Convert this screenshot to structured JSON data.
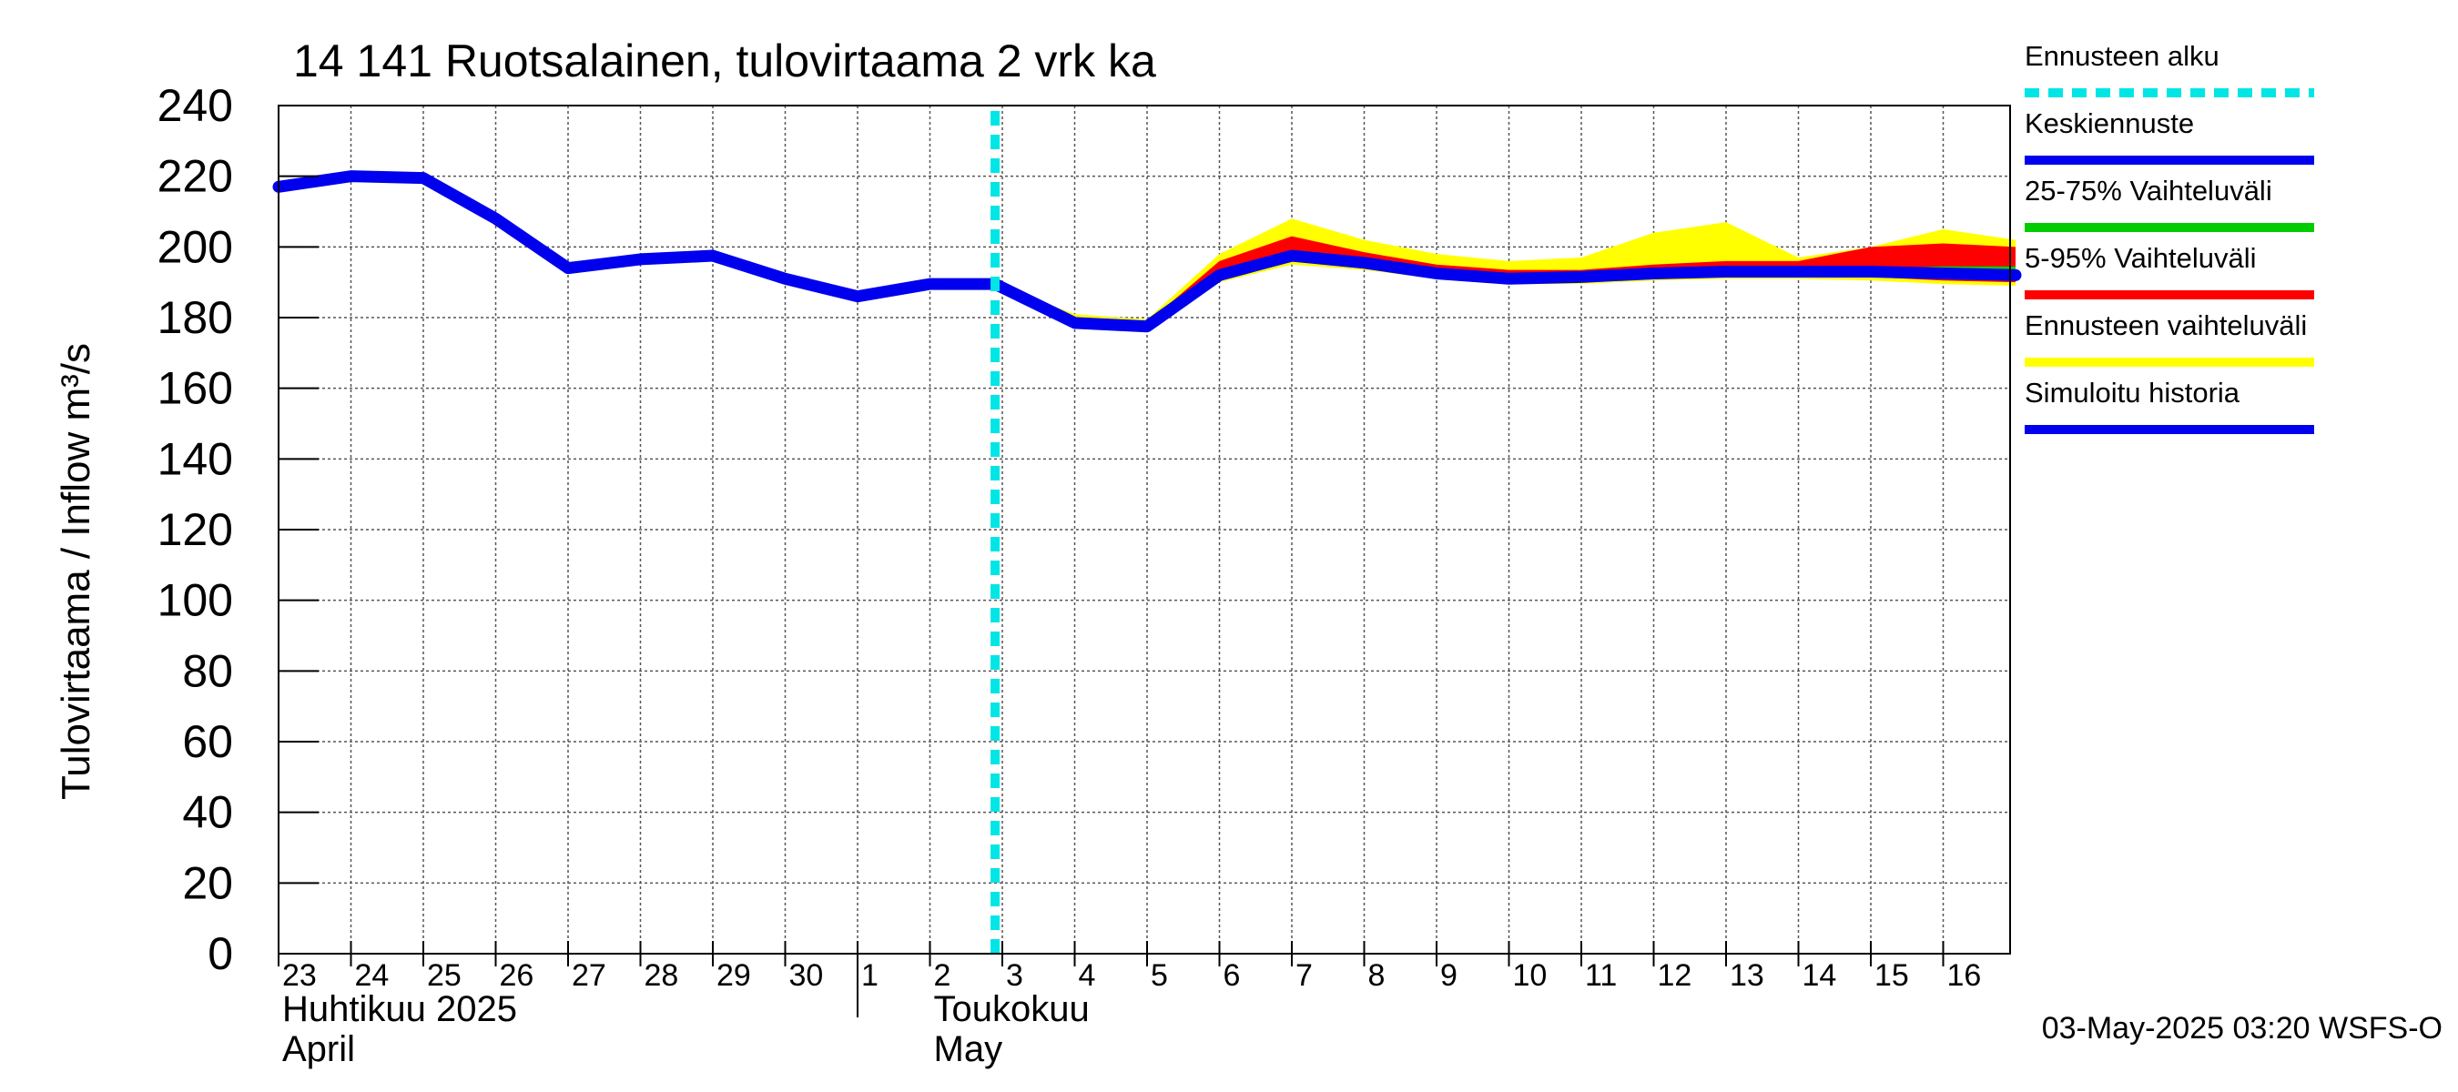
{
  "chart_data": {
    "type": "line",
    "title": "14 141 Ruotsalainen, tulovirtaama 2 vrk ka",
    "ylabel": "Tulovirtaama / Inflow    m³/s",
    "ylim": [
      0,
      240
    ],
    "yticks": [
      0,
      20,
      40,
      60,
      80,
      100,
      120,
      140,
      160,
      180,
      200,
      220,
      240
    ],
    "grid": true,
    "x_start": "2025-04-23",
    "x_end": "2025-05-17",
    "day_ticks": [
      {
        "x": 0,
        "label": "23"
      },
      {
        "x": 1,
        "label": "24"
      },
      {
        "x": 2,
        "label": "25"
      },
      {
        "x": 3,
        "label": "26"
      },
      {
        "x": 4,
        "label": "27"
      },
      {
        "x": 5,
        "label": "28"
      },
      {
        "x": 6,
        "label": "29"
      },
      {
        "x": 7,
        "label": "30"
      },
      {
        "x": 8,
        "label": "1"
      },
      {
        "x": 9,
        "label": "2"
      },
      {
        "x": 10,
        "label": "3"
      },
      {
        "x": 11,
        "label": "4"
      },
      {
        "x": 12,
        "label": "5"
      },
      {
        "x": 13,
        "label": "6"
      },
      {
        "x": 14,
        "label": "7"
      },
      {
        "x": 15,
        "label": "8"
      },
      {
        "x": 16,
        "label": "9"
      },
      {
        "x": 17,
        "label": "10"
      },
      {
        "x": 18,
        "label": "11"
      },
      {
        "x": 19,
        "label": "12"
      },
      {
        "x": 20,
        "label": "13"
      },
      {
        "x": 21,
        "label": "14"
      },
      {
        "x": 22,
        "label": "15"
      },
      {
        "x": 23,
        "label": "16"
      }
    ],
    "month_labels": [
      {
        "x": 0,
        "fi": "Huhtikuu  2025",
        "en": "April"
      },
      {
        "x": 9,
        "fi": "Toukokuu",
        "en": "May"
      }
    ],
    "month_separator_x": 8,
    "forecast_start_x": 9.9,
    "series": [
      {
        "name": "Simuloitu historia",
        "color": "#0000ee",
        "x": [
          0,
          1,
          2,
          3,
          4,
          5,
          6,
          7,
          8,
          9,
          9.9
        ],
        "values": [
          217,
          220,
          219.5,
          208,
          194,
          196.5,
          197.5,
          191,
          186,
          189.5,
          189.5
        ]
      },
      {
        "name": "Keskiennuste",
        "color": "#0000ee",
        "x": [
          9.9,
          11,
          12,
          13,
          14,
          15,
          16,
          17,
          18,
          19,
          20,
          21,
          22,
          23,
          24
        ],
        "values": [
          189.5,
          178.5,
          177.5,
          192,
          197.5,
          195.5,
          192.5,
          191,
          191.5,
          192.5,
          193,
          193,
          193,
          192.5,
          192
        ]
      }
    ],
    "bands": [
      {
        "name": "Ennusteen vaihteluväli",
        "color": "#ffff00",
        "x": [
          9.9,
          11,
          12,
          13,
          14,
          15,
          16,
          17,
          18,
          19,
          20,
          21,
          22,
          23,
          24
        ],
        "lower": [
          189.5,
          177.5,
          176.5,
          190,
          195,
          193.5,
          191,
          189.5,
          189.5,
          190.5,
          191,
          191,
          190.5,
          189.5,
          189
        ],
        "upper": [
          189.5,
          181,
          179.5,
          198,
          208,
          202,
          198,
          196,
          197,
          204,
          207,
          197,
          200,
          205,
          202
        ]
      },
      {
        "name": "5-95% Vaihteluväli",
        "color": "#ff0000",
        "x": [
          9.9,
          11,
          12,
          13,
          14,
          15,
          16,
          17,
          18,
          19,
          20,
          21,
          22,
          23,
          24
        ],
        "lower": [
          189.5,
          178,
          177,
          191,
          196,
          194.5,
          191.5,
          190,
          190,
          191,
          191.5,
          192,
          191.5,
          190.5,
          190
        ],
        "upper": [
          189.5,
          180,
          178.5,
          196,
          203,
          198.5,
          195,
          193.5,
          193.5,
          195,
          196,
          196,
          200,
          201,
          200
        ]
      },
      {
        "name": "25-75% Vaihteluväli",
        "color": "#00cc00",
        "x": [
          9.9,
          11,
          12,
          13,
          14,
          15,
          16,
          17,
          18,
          19,
          20,
          21,
          22,
          23,
          24
        ],
        "lower": [
          189.5,
          178.5,
          177.5,
          192,
          197,
          195,
          192,
          190.5,
          191,
          192,
          192.5,
          192.5,
          192.5,
          192,
          191.5
        ],
        "upper": [
          189.5,
          179,
          178,
          193,
          198.5,
          196.5,
          193.5,
          192,
          192.5,
          193.5,
          194,
          194,
          194,
          194.5,
          194.5
        ]
      }
    ],
    "legend": {
      "position": "right",
      "items": [
        {
          "label": "Ennusteen alku",
          "color": "#00e5e5",
          "style": "dashed"
        },
        {
          "label": "Keskiennuste",
          "color": "#0000ee",
          "style": "solid"
        },
        {
          "label": "25-75% Vaihteluväli",
          "color": "#00cc00",
          "style": "solid"
        },
        {
          "label": "5-95% Vaihteluväli",
          "color": "#ff0000",
          "style": "solid"
        },
        {
          "label": "Ennusteen vaihteluväli",
          "color": "#ffff00",
          "style": "solid"
        },
        {
          "label": "Simuloitu historia",
          "color": "#0000ee",
          "style": "solid"
        }
      ]
    },
    "footer": "03-May-2025 03:20 WSFS-O"
  }
}
